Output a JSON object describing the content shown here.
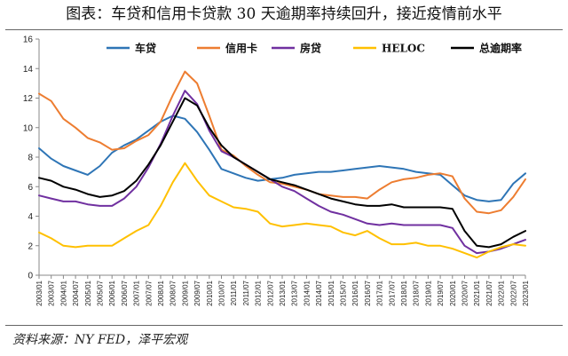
{
  "header": {
    "title": "图表：车贷和信用卡贷款 30 天逾期率持续回升，接近疫情前水平"
  },
  "footer": {
    "source": "资料来源：NY FED，泽平宏观"
  },
  "chart_data": {
    "type": "line",
    "ylim": [
      0,
      16
    ],
    "yticks": [
      0,
      2,
      4,
      6,
      8,
      10,
      12,
      14,
      16
    ],
    "x": [
      "2003/01",
      "2003/07",
      "2004/01",
      "2004/07",
      "2005/01",
      "2005/07",
      "2006/01",
      "2006/07",
      "2007/01",
      "2007/07",
      "2008/01",
      "2008/07",
      "2009/01",
      "2009/07",
      "2010/01",
      "2010/07",
      "2011/01",
      "2011/07",
      "2012/01",
      "2012/07",
      "2013/01",
      "2013/07",
      "2014/01",
      "2014/07",
      "2015/01",
      "2015/07",
      "2016/01",
      "2016/07",
      "2017/01",
      "2017/07",
      "2018/01",
      "2018/07",
      "2019/01",
      "2019/07",
      "2020/01",
      "2020/07",
      "2021/01",
      "2021/07",
      "2022/01",
      "2022/07",
      "2023/01"
    ],
    "legend_position": "top",
    "grid": false,
    "series": [
      {
        "name": "车贷",
        "color": "#2E75B6",
        "values": [
          8.6,
          7.9,
          7.4,
          7.1,
          6.8,
          7.4,
          8.3,
          8.8,
          9.2,
          9.8,
          10.4,
          10.8,
          10.6,
          9.7,
          8.5,
          7.2,
          6.9,
          6.6,
          6.4,
          6.5,
          6.6,
          6.8,
          6.9,
          7.0,
          7.0,
          7.1,
          7.2,
          7.3,
          7.4,
          7.3,
          7.2,
          7.0,
          6.9,
          6.8,
          6.1,
          5.4,
          5.1,
          5.0,
          5.1,
          6.2,
          6.9
        ]
      },
      {
        "name": "信用卡",
        "color": "#ED7D31",
        "values": [
          12.3,
          11.8,
          10.6,
          10.0,
          9.3,
          9.0,
          8.5,
          8.6,
          9.1,
          9.5,
          10.4,
          12.2,
          13.8,
          13.0,
          10.8,
          8.5,
          8.1,
          7.4,
          6.8,
          6.3,
          6.2,
          6.0,
          5.8,
          5.5,
          5.4,
          5.3,
          5.3,
          5.2,
          5.8,
          6.3,
          6.5,
          6.6,
          6.8,
          6.9,
          6.7,
          5.2,
          4.3,
          4.2,
          4.4,
          5.3,
          6.5
        ]
      },
      {
        "name": "房贷",
        "color": "#7030A0",
        "values": [
          5.4,
          5.2,
          5.0,
          5.0,
          4.8,
          4.7,
          4.7,
          5.2,
          6.0,
          7.3,
          8.9,
          10.8,
          12.5,
          11.6,
          9.8,
          8.4,
          8.0,
          7.5,
          7.0,
          6.5,
          6.0,
          5.7,
          5.2,
          4.7,
          4.3,
          4.1,
          3.8,
          3.5,
          3.4,
          3.5,
          3.4,
          3.4,
          3.4,
          3.4,
          3.2,
          2.0,
          1.5,
          1.6,
          1.8,
          2.1,
          2.4
        ]
      },
      {
        "name": "HELOC",
        "color": "#FFC000",
        "values": [
          2.9,
          2.5,
          2.0,
          1.9,
          2.0,
          2.0,
          2.0,
          2.5,
          3.0,
          3.4,
          4.7,
          6.3,
          7.6,
          6.4,
          5.4,
          5.0,
          4.6,
          4.5,
          4.3,
          3.5,
          3.3,
          3.4,
          3.5,
          3.4,
          3.3,
          2.9,
          2.7,
          3.0,
          2.5,
          2.1,
          2.1,
          2.2,
          2.0,
          2.0,
          1.8,
          1.5,
          1.2,
          1.6,
          1.9,
          2.1,
          2.0
        ]
      },
      {
        "name": "总逾期率",
        "color": "#000000",
        "values": [
          6.6,
          6.4,
          6.0,
          5.8,
          5.5,
          5.3,
          5.4,
          5.7,
          6.4,
          7.5,
          8.8,
          10.4,
          12.0,
          11.5,
          10.0,
          8.8,
          8.0,
          7.5,
          7.0,
          6.5,
          6.3,
          6.1,
          5.8,
          5.5,
          5.2,
          5.0,
          4.8,
          4.7,
          4.7,
          4.8,
          4.6,
          4.6,
          4.6,
          4.6,
          4.5,
          3.0,
          2.0,
          1.9,
          2.1,
          2.6,
          3.0
        ]
      }
    ]
  }
}
